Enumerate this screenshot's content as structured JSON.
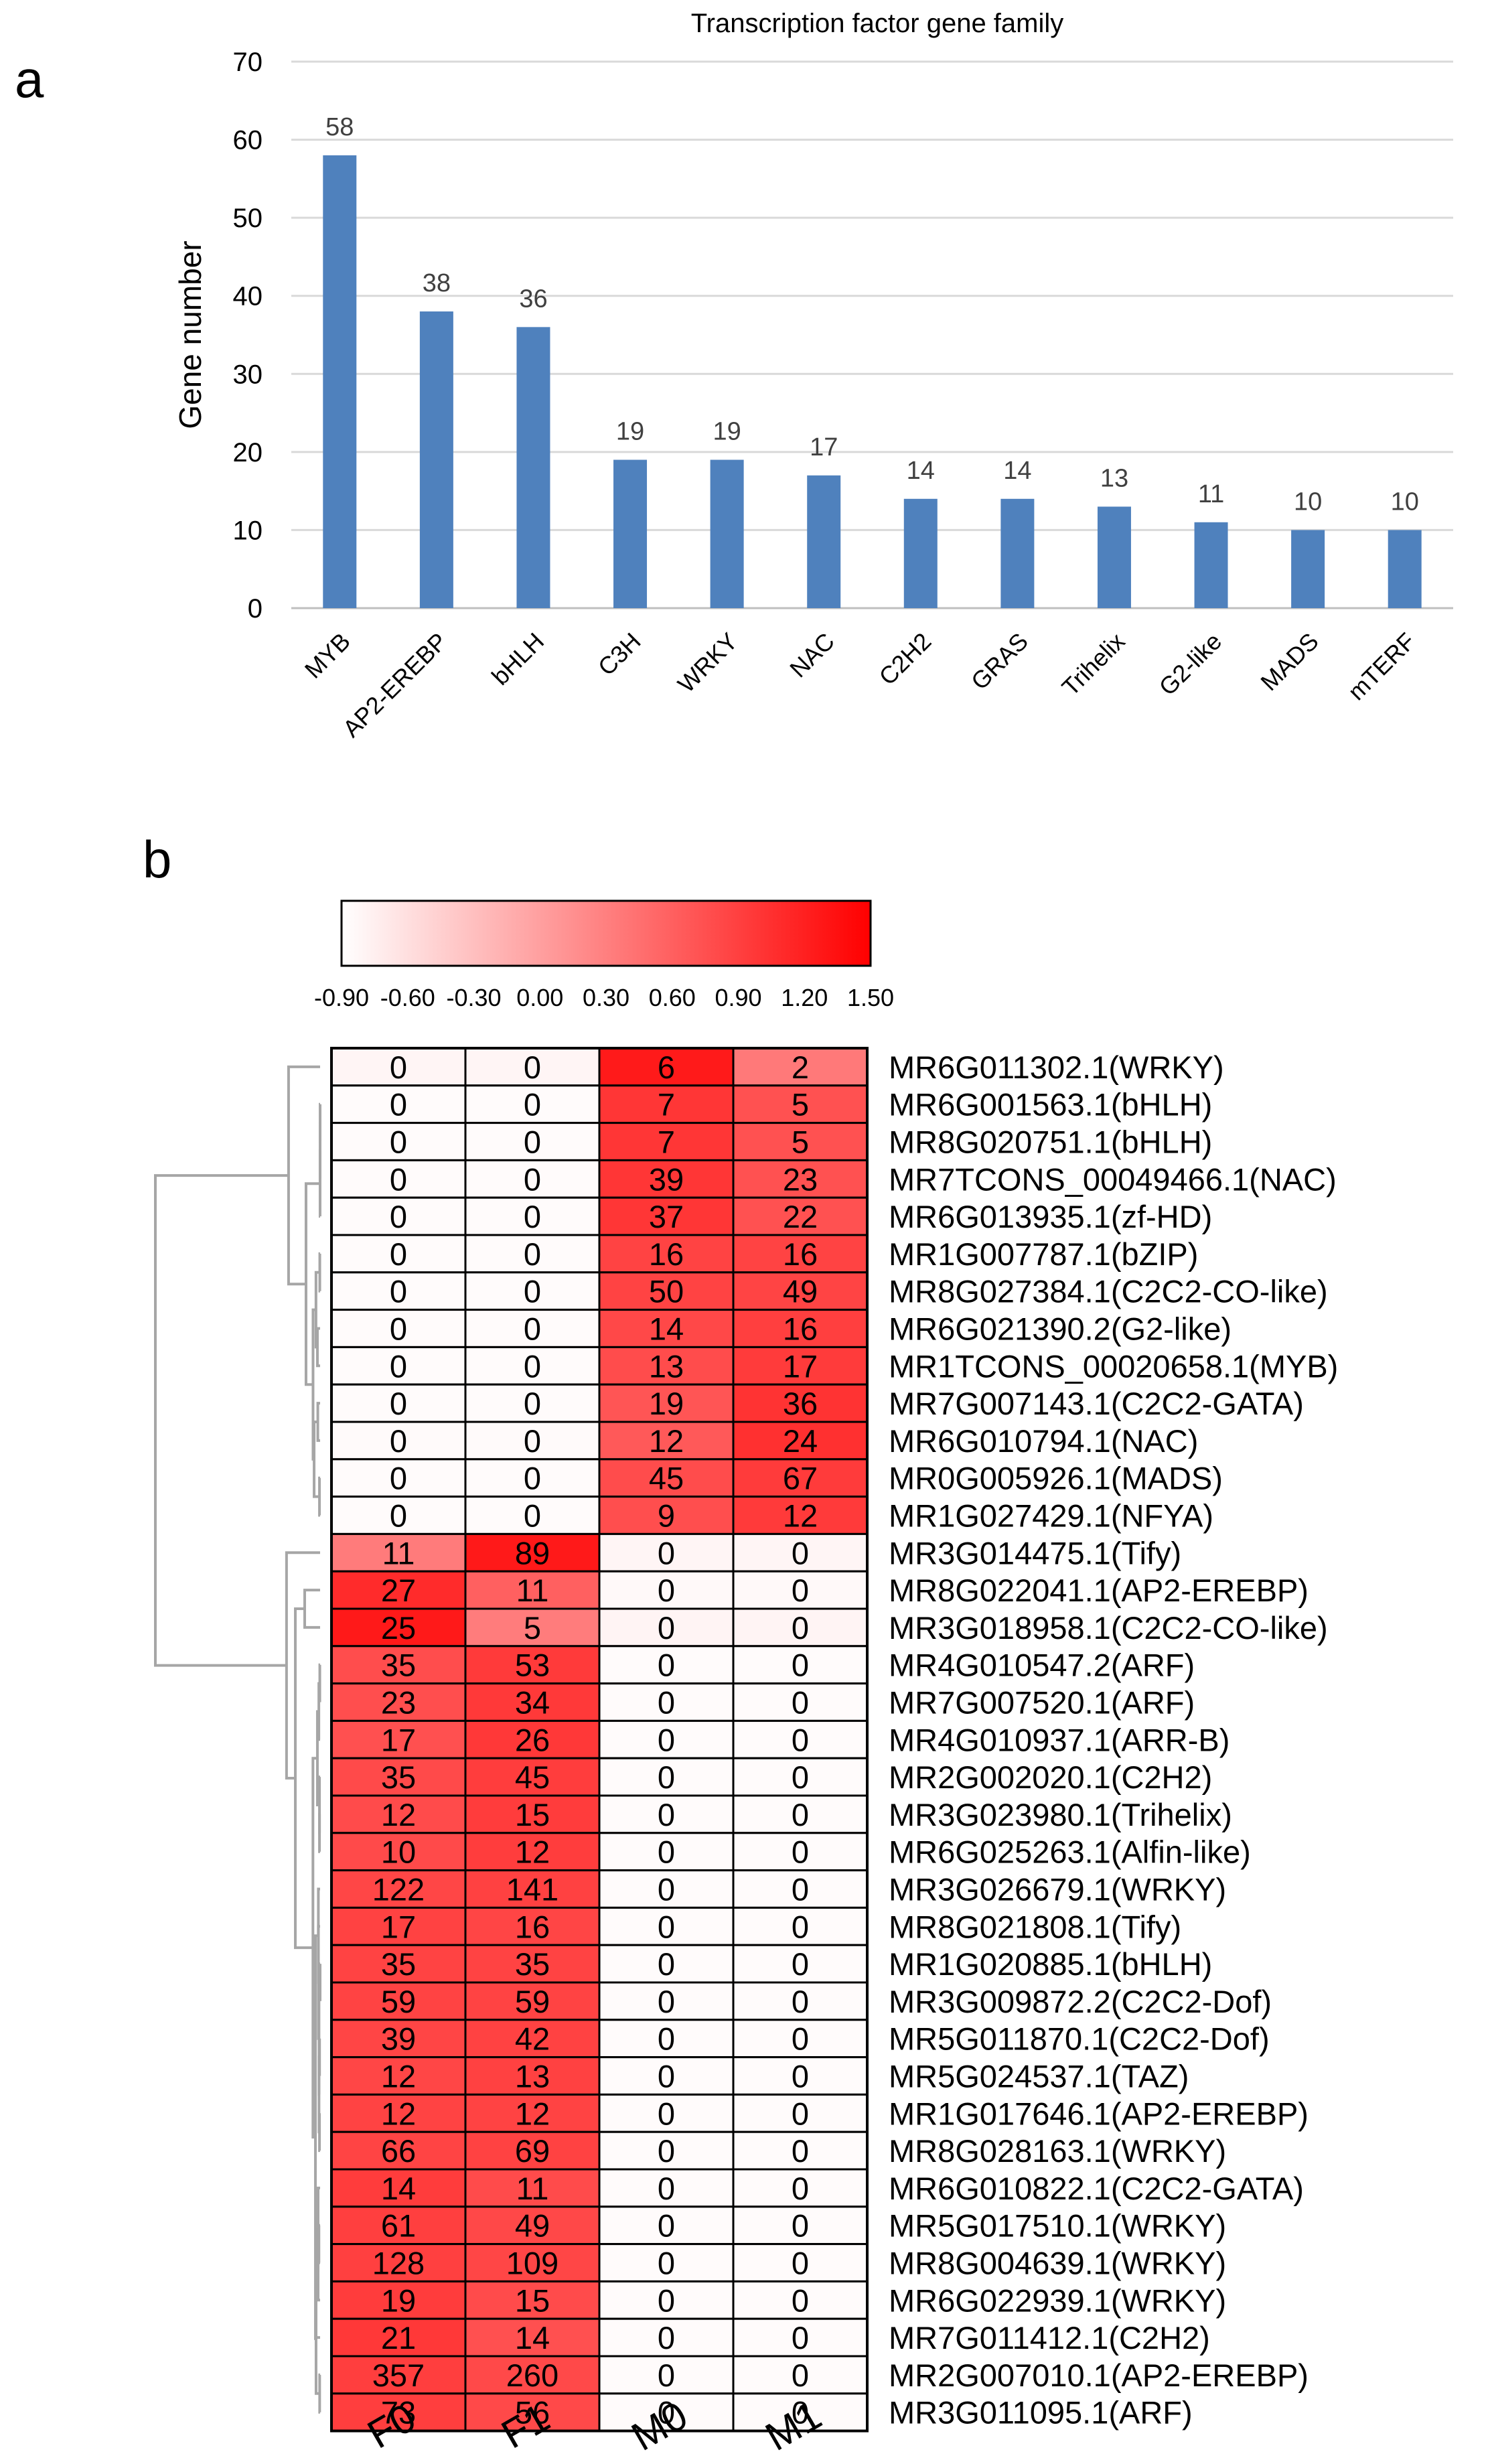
{
  "panel_labels": [
    "a",
    "b"
  ],
  "chart_data": [
    {
      "type": "bar",
      "title": "Transcription factor gene family",
      "ylabel": "Gene number",
      "xlabel": "",
      "ylim": [
        0,
        70
      ],
      "yticks": [
        0,
        10,
        20,
        30,
        40,
        50,
        60,
        70
      ],
      "grid": true,
      "bar_color": "#4F81BD",
      "categories": [
        "MYB",
        "AP2-EREBP",
        "bHLH",
        "C3H",
        "WRKY",
        "NAC",
        "C2H2",
        "GRAS",
        "Trihelix",
        "G2-like",
        "MADS",
        "mTERF"
      ],
      "values": [
        58,
        38,
        36,
        19,
        19,
        17,
        14,
        14,
        13,
        11,
        10,
        10
      ]
    },
    {
      "type": "heatmap",
      "color_scale": {
        "ticks": [
          "-0.90",
          "-0.60",
          "-0.30",
          "0.00",
          "0.30",
          "0.60",
          "0.90",
          "1.20",
          "1.50"
        ],
        "range": [
          -0.9,
          1.5
        ],
        "low_color": "#FFFFFF",
        "high_color": "#FF0000"
      },
      "columns": [
        "F0",
        "F1",
        "M0",
        "M1"
      ],
      "rows": [
        {
          "label": "MR6G011302.1(WRKY)",
          "values": [
            0,
            0,
            6,
            2
          ]
        },
        {
          "label": "MR6G001563.1(bHLH)",
          "values": [
            0,
            0,
            7,
            5
          ]
        },
        {
          "label": "MR8G020751.1(bHLH)",
          "values": [
            0,
            0,
            7,
            5
          ]
        },
        {
          "label": "MR7TCONS_00049466.1(NAC)",
          "values": [
            0,
            0,
            39,
            23
          ]
        },
        {
          "label": "MR6G013935.1(zf-HD)",
          "values": [
            0,
            0,
            37,
            22
          ]
        },
        {
          "label": "MR1G007787.1(bZIP)",
          "values": [
            0,
            0,
            16,
            16
          ]
        },
        {
          "label": "MR8G027384.1(C2C2-CO-like)",
          "values": [
            0,
            0,
            50,
            49
          ]
        },
        {
          "label": "MR6G021390.2(G2-like)",
          "values": [
            0,
            0,
            14,
            16
          ]
        },
        {
          "label": "MR1TCONS_00020658.1(MYB)",
          "values": [
            0,
            0,
            13,
            17
          ]
        },
        {
          "label": "MR7G007143.1(C2C2-GATA)",
          "values": [
            0,
            0,
            19,
            36
          ]
        },
        {
          "label": "MR6G010794.1(NAC)",
          "values": [
            0,
            0,
            12,
            24
          ]
        },
        {
          "label": "MR0G005926.1(MADS)",
          "values": [
            0,
            0,
            45,
            67
          ]
        },
        {
          "label": "MR1G027429.1(NFYA)",
          "values": [
            0,
            0,
            9,
            12
          ]
        },
        {
          "label": "MR3G014475.1(Tify)",
          "values": [
            11,
            89,
            0,
            0
          ]
        },
        {
          "label": "MR8G022041.1(AP2-EREBP)",
          "values": [
            27,
            11,
            0,
            0
          ]
        },
        {
          "label": "MR3G018958.1(C2C2-CO-like)",
          "values": [
            25,
            5,
            0,
            0
          ]
        },
        {
          "label": "MR4G010547.2(ARF)",
          "values": [
            35,
            53,
            0,
            0
          ]
        },
        {
          "label": "MR7G007520.1(ARF)",
          "values": [
            23,
            34,
            0,
            0
          ]
        },
        {
          "label": "MR4G010937.1(ARR-B)",
          "values": [
            17,
            26,
            0,
            0
          ]
        },
        {
          "label": "MR2G002020.1(C2H2)",
          "values": [
            35,
            45,
            0,
            0
          ]
        },
        {
          "label": "MR3G023980.1(Trihelix)",
          "values": [
            12,
            15,
            0,
            0
          ]
        },
        {
          "label": "MR6G025263.1(Alfin-like)",
          "values": [
            10,
            12,
            0,
            0
          ]
        },
        {
          "label": "MR3G026679.1(WRKY)",
          "values": [
            122,
            141,
            0,
            0
          ]
        },
        {
          "label": "MR8G021808.1(Tify)",
          "values": [
            17,
            16,
            0,
            0
          ]
        },
        {
          "label": "MR1G020885.1(bHLH)",
          "values": [
            35,
            35,
            0,
            0
          ]
        },
        {
          "label": "MR3G009872.2(C2C2-Dof)",
          "values": [
            59,
            59,
            0,
            0
          ]
        },
        {
          "label": "MR5G011870.1(C2C2-Dof)",
          "values": [
            39,
            42,
            0,
            0
          ]
        },
        {
          "label": "MR5G024537.1(TAZ)",
          "values": [
            12,
            13,
            0,
            0
          ]
        },
        {
          "label": "MR1G017646.1(AP2-EREBP)",
          "values": [
            12,
            12,
            0,
            0
          ]
        },
        {
          "label": "MR8G028163.1(WRKY)",
          "values": [
            66,
            69,
            0,
            0
          ]
        },
        {
          "label": "MR6G010822.1(C2C2-GATA)",
          "values": [
            14,
            11,
            0,
            0
          ]
        },
        {
          "label": "MR5G017510.1(WRKY)",
          "values": [
            61,
            49,
            0,
            0
          ]
        },
        {
          "label": "MR8G004639.1(WRKY)",
          "values": [
            128,
            109,
            0,
            0
          ]
        },
        {
          "label": "MR6G022939.1(WRKY)",
          "values": [
            19,
            15,
            0,
            0
          ]
        },
        {
          "label": "MR7G011412.1(C2H2)",
          "values": [
            21,
            14,
            0,
            0
          ]
        },
        {
          "label": "MR2G007010.1(AP2-EREBP)",
          "values": [
            357,
            260,
            0,
            0
          ]
        },
        {
          "label": "MR3G011095.1(ARF)",
          "values": [
            73,
            56,
            0,
            0
          ]
        }
      ]
    }
  ]
}
